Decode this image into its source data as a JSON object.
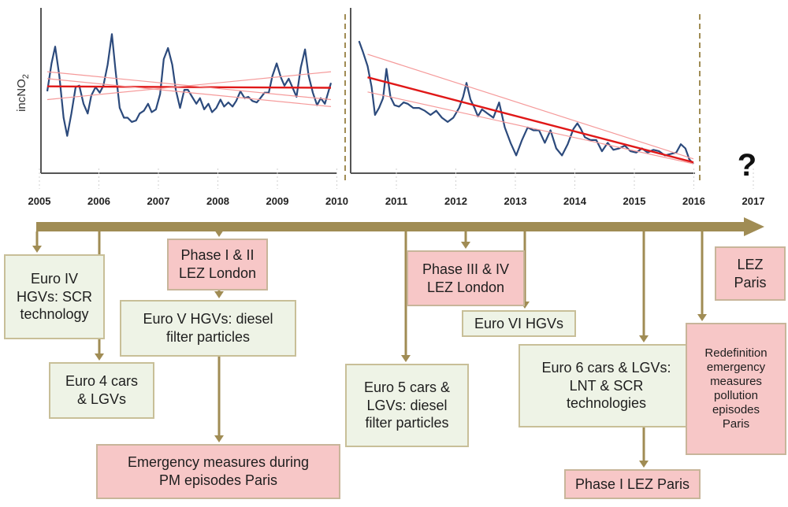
{
  "y_axis_label": "incNO",
  "y_axis_label_subscript": "2",
  "question_mark": "?",
  "colors": {
    "timeline": "#a08c54",
    "series_line": "#2c4a7c",
    "trend": "#e01818",
    "trend_band": "#f59a9a",
    "green_box": "#eef3e6",
    "pink_box": "#f7c7c7"
  },
  "years": [
    "2005",
    "2006",
    "2007",
    "2008",
    "2009",
    "2010",
    "2011",
    "2012",
    "2013",
    "2014",
    "2015",
    "2016",
    "2017"
  ],
  "events": [
    {
      "id": "euro-iv-hgvs",
      "year": 2005,
      "text": "Euro IV\nHGVs: SCR\ntechnology",
      "color": "green"
    },
    {
      "id": "euro-4-cars",
      "year": 2006,
      "text": "Euro 4 cars\n& LGVs",
      "color": "green"
    },
    {
      "id": "phase-1-2-lez-london",
      "year": 2008,
      "text": "Phase I & II\nLEZ London",
      "color": "pink"
    },
    {
      "id": "euro-v-hgvs",
      "year": 2008,
      "text": "Euro V HGVs: diesel\nfilter particles",
      "color": "green"
    },
    {
      "id": "emergency-measures-pm",
      "year": 2008,
      "text": "Emergency measures during\nPM episodes Paris",
      "color": "pink"
    },
    {
      "id": "euro-5-cars",
      "year": 2011,
      "text": "Euro 5 cars &\nLGVs: diesel\nfilter particles",
      "color": "green"
    },
    {
      "id": "phase-3-4-lez-london",
      "year": 2012,
      "text": "Phase III & IV\nLEZ London",
      "color": "pink"
    },
    {
      "id": "euro-vi-hgvs",
      "year": 2013,
      "text": "Euro VI HGVs",
      "color": "green"
    },
    {
      "id": "euro-6-cars",
      "year": 2015,
      "text": "Euro 6 cars & LGVs:\nLNT & SCR\ntechnologies",
      "color": "green"
    },
    {
      "id": "phase-1-lez-paris",
      "year": 2015,
      "text": "Phase I LEZ Paris",
      "color": "pink"
    },
    {
      "id": "lez-paris",
      "year": 2017,
      "text": "LEZ\nParis",
      "color": "pink"
    },
    {
      "id": "redefinition-emergency",
      "year": 2016,
      "text": "Redefinition\nemergency\nmeasures\npollution\nepisodes\nParis",
      "color": "pink"
    }
  ],
  "chart_data": [
    {
      "type": "line",
      "ylabel": "incNO2",
      "x_range": [
        2005.1,
        2009.8
      ],
      "series": [
        {
          "role": "observed",
          "x": [
            2005.1,
            2005.17,
            2005.23,
            2005.3,
            2005.37,
            2005.43,
            2005.5,
            2005.57,
            2005.63,
            2005.7,
            2005.77,
            2005.83,
            2005.9,
            2005.97,
            2006.03,
            2006.1,
            2006.17,
            2006.23,
            2006.3,
            2006.37,
            2006.43,
            2006.5,
            2006.57,
            2006.63,
            2006.7,
            2006.77,
            2006.83,
            2006.9,
            2006.97,
            2007.03,
            2007.1,
            2007.17,
            2007.23,
            2007.3,
            2007.37,
            2007.43,
            2007.5,
            2007.57,
            2007.63,
            2007.7,
            2007.77,
            2007.83,
            2007.9,
            2007.97,
            2008.03,
            2008.1,
            2008.17,
            2008.23,
            2008.3,
            2008.37,
            2008.43,
            2008.5,
            2008.57,
            2008.63,
            2008.7,
            2008.77,
            2008.83,
            2008.9,
            2008.97,
            2009.03,
            2009.1,
            2009.17,
            2009.23,
            2009.3,
            2009.37,
            2009.43,
            2009.5,
            2009.57,
            2009.63,
            2009.7,
            2009.8
          ],
          "y": [
            5.2,
            7.2,
            8.4,
            6.3,
            3.3,
            2.0,
            3.6,
            5.5,
            5.6,
            4.3,
            3.6,
            4.9,
            5.5,
            5.1,
            5.6,
            7.1,
            9.3,
            6.7,
            4.0,
            3.3,
            3.3,
            3.0,
            3.1,
            3.6,
            3.8,
            4.3,
            3.7,
            3.9,
            5.0,
            7.5,
            8.3,
            7.1,
            5.3,
            4.0,
            5.3,
            5.3,
            4.8,
            4.3,
            4.7,
            3.9,
            4.3,
            3.7,
            4.0,
            4.6,
            4.1,
            4.4,
            4.1,
            4.5,
            5.2,
            4.7,
            4.8,
            4.5,
            4.4,
            4.7,
            5.1,
            5.1,
            6.3,
            7.2,
            6.2,
            5.6,
            6.1,
            5.4,
            4.8,
            6.9,
            8.2,
            6.3,
            5.1,
            4.2,
            4.7,
            4.3,
            5.8
          ]
        },
        {
          "role": "trend",
          "x": [
            2005.1,
            2009.8
          ],
          "y": [
            5.55,
            5.45
          ]
        },
        {
          "role": "band-upper",
          "x": [
            2005.1,
            2009.8
          ],
          "y": [
            6.6,
            4.6
          ]
        },
        {
          "role": "band-lower",
          "x": [
            2005.1,
            2009.8
          ],
          "y": [
            4.6,
            6.6
          ]
        },
        {
          "role": "band-lower-2",
          "x": [
            2005.1,
            2009.8
          ],
          "y": [
            6.1,
            4.1
          ]
        }
      ]
    },
    {
      "type": "line",
      "x_range": [
        2010.1,
        2016.0
      ],
      "series": [
        {
          "role": "observed",
          "x": [
            2010.15,
            2010.22,
            2010.3,
            2010.37,
            2010.43,
            2010.5,
            2010.57,
            2010.63,
            2010.7,
            2010.77,
            2010.85,
            2010.93,
            2011.0,
            2011.1,
            2011.2,
            2011.3,
            2011.4,
            2011.5,
            2011.6,
            2011.7,
            2011.8,
            2011.9,
            2011.97,
            2012.03,
            2012.1,
            2012.17,
            2012.23,
            2012.3,
            2012.4,
            2012.5,
            2012.6,
            2012.7,
            2012.8,
            2012.9,
            2013.0,
            2013.1,
            2013.2,
            2013.3,
            2013.4,
            2013.5,
            2013.6,
            2013.7,
            2013.8,
            2013.9,
            2013.97,
            2014.03,
            2014.1,
            2014.2,
            2014.3,
            2014.4,
            2014.5,
            2014.6,
            2014.7,
            2014.8,
            2014.9,
            2015.0,
            2015.1,
            2015.2,
            2015.3,
            2015.4,
            2015.5,
            2015.6,
            2015.7,
            2015.78,
            2015.86,
            2015.93,
            2016.0
          ],
          "y": [
            8.8,
            8.0,
            7.0,
            5.5,
            3.5,
            4.0,
            4.7,
            6.8,
            4.8,
            4.2,
            4.1,
            4.4,
            4.3,
            4.0,
            4.0,
            3.8,
            3.5,
            3.8,
            3.3,
            3.0,
            3.3,
            4.0,
            4.8,
            5.8,
            4.6,
            4.0,
            3.4,
            3.9,
            3.6,
            3.3,
            4.4,
            2.6,
            1.5,
            0.6,
            1.7,
            2.6,
            2.4,
            2.4,
            1.5,
            2.4,
            1.1,
            0.6,
            1.4,
            2.5,
            2.9,
            2.5,
            1.9,
            1.7,
            1.7,
            0.9,
            1.5,
            1.0,
            1.1,
            1.3,
            0.9,
            0.8,
            1.1,
            0.8,
            1.0,
            0.9,
            0.6,
            0.7,
            0.8,
            1.4,
            1.1,
            0.3,
            0.0
          ]
        },
        {
          "role": "trend",
          "x": [
            2010.3,
            2016.0
          ],
          "y": [
            6.2,
            0.1
          ]
        },
        {
          "role": "band-upper",
          "x": [
            2010.3,
            2016.0
          ],
          "y": [
            7.85,
            0.35
          ]
        },
        {
          "role": "band-lower",
          "x": [
            2010.3,
            2016.0
          ],
          "y": [
            5.15,
            0.0
          ]
        }
      ]
    }
  ]
}
